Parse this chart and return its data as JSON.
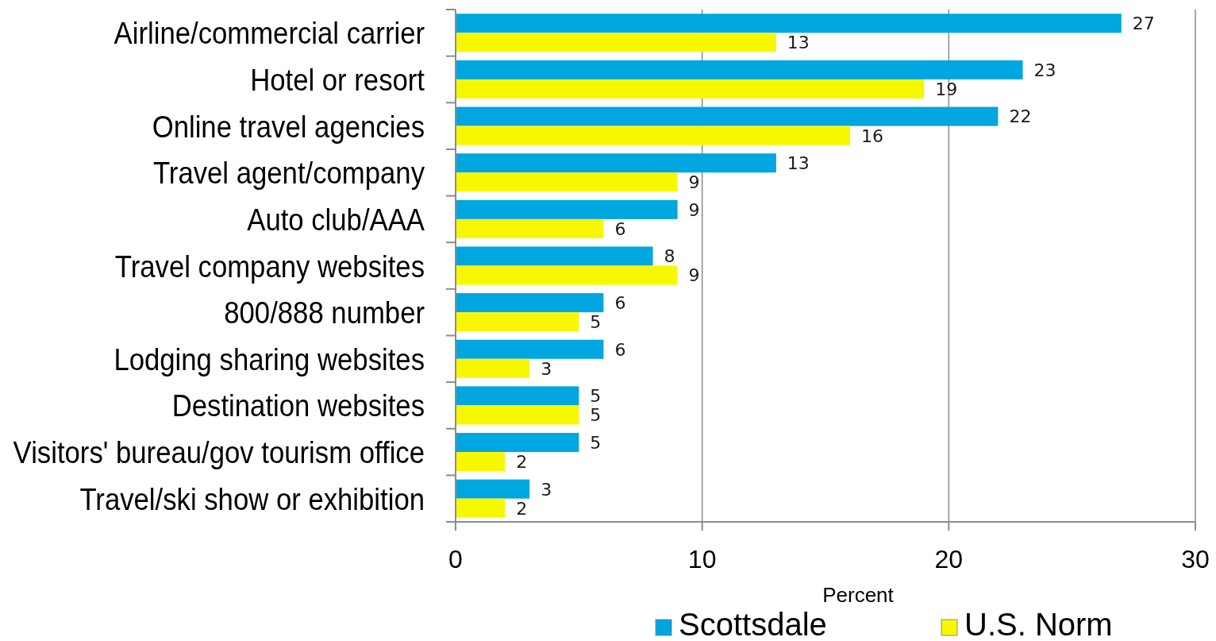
{
  "chart_data": {
    "type": "bar",
    "orientation": "horizontal",
    "categories": [
      "Airline/commercial carrier",
      "Hotel or resort",
      "Online travel agencies",
      "Travel agent/company",
      "Auto club/AAA",
      "Travel company websites",
      "800/888 number",
      "Lodging sharing websites",
      "Destination websites",
      "Visitors' bureau/gov tourism office",
      "Travel/ski show or exhibition"
    ],
    "series": [
      {
        "name": "Scottsdale",
        "color": "#00a6e0",
        "values": [
          27,
          23,
          22,
          13,
          9,
          8,
          6,
          6,
          5,
          5,
          3
        ]
      },
      {
        "name": "U.S. Norm",
        "color": "#f7f700",
        "values": [
          13,
          19,
          16,
          9,
          6,
          9,
          5,
          3,
          5,
          2,
          2
        ]
      }
    ],
    "xlabel": "Percent",
    "xlim": [
      0,
      30
    ],
    "xticks": [
      0,
      10,
      20,
      30
    ],
    "grid": "x",
    "legend": "bottom",
    "data_labels": true
  }
}
